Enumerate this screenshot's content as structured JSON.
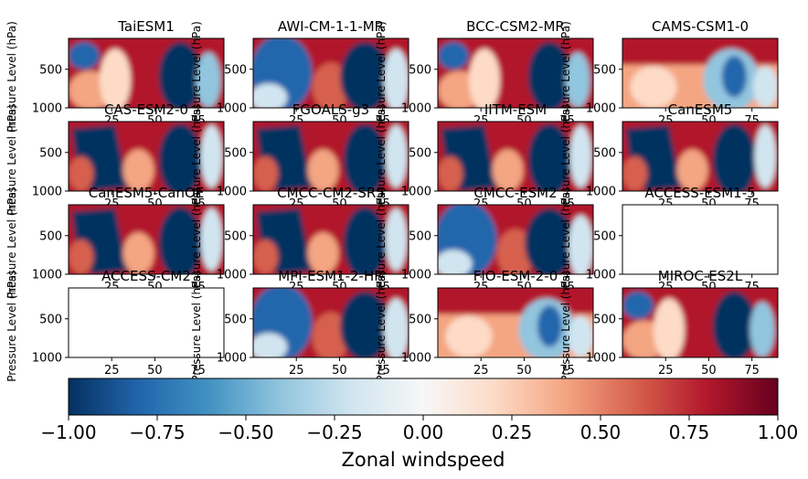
{
  "chart_data": {
    "type": "heatmap",
    "panels": [
      {
        "title": "TaiESM1",
        "pattern": "a"
      },
      {
        "title": "AWI-CM-1-1-MR",
        "pattern": "b"
      },
      {
        "title": "BCC-CSM2-MR",
        "pattern": "a"
      },
      {
        "title": "CAMS-CSM1-0",
        "pattern": "c"
      },
      {
        "title": "CAS-ESM2-0",
        "pattern": "d"
      },
      {
        "title": "FGOALS-g3",
        "pattern": "d"
      },
      {
        "title": "IITM-ESM",
        "pattern": "d"
      },
      {
        "title": "CanESM5",
        "pattern": "d"
      },
      {
        "title": "CanESM5-CanOE",
        "pattern": "d"
      },
      {
        "title": "CMCC-CM2-SR5",
        "pattern": "d"
      },
      {
        "title": "CMCC-ESM2",
        "pattern": "b"
      },
      {
        "title": "ACCESS-ESM1-5",
        "pattern": "empty"
      },
      {
        "title": "ACCESS-CM2",
        "pattern": "empty"
      },
      {
        "title": "MPI-ESM1-2-HR",
        "pattern": "b"
      },
      {
        "title": "FIO-ESM-2-0",
        "pattern": "c"
      },
      {
        "title": "MIROC-ES2L",
        "pattern": "a"
      }
    ],
    "ylabel": "Pressure Level (hPa)",
    "y_ticks": [
      500,
      1000
    ],
    "x_ticks": [
      25,
      50,
      75
    ],
    "xlim": [
      0,
      90
    ],
    "ylim": [
      1000,
      100
    ],
    "colorbar": {
      "label": "Zonal windspeed",
      "ticks": [
        "−1.00",
        "−0.75",
        "−0.50",
        "−0.25",
        "0.00",
        "0.25",
        "0.50",
        "0.75",
        "1.00"
      ],
      "range": [
        -1,
        1
      ],
      "colormap": "RdBu_r"
    }
  }
}
